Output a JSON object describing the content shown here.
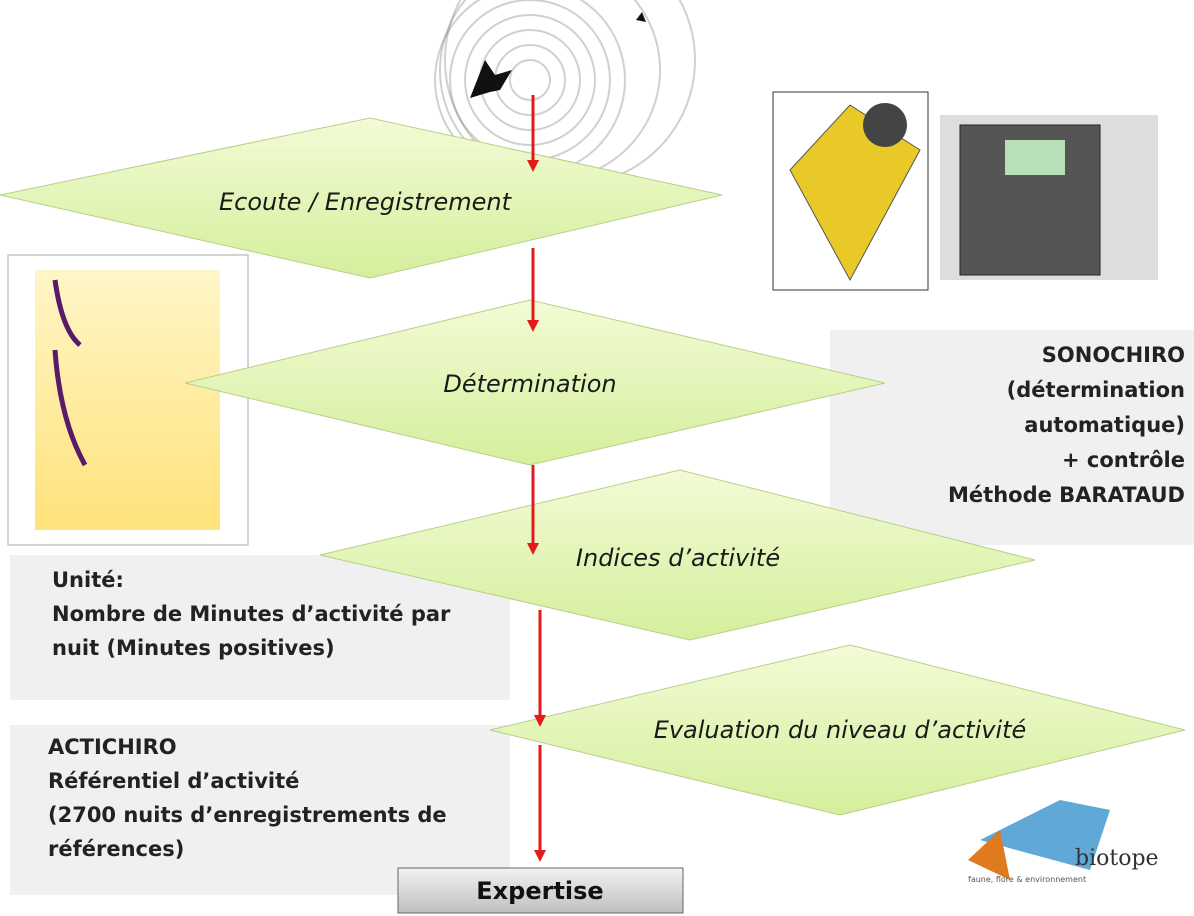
{
  "steps": [
    "Ecoute / Enregistrement",
    "Détermination",
    "Indices d’activité",
    "Evaluation du niveau d’activité"
  ],
  "final_step": "Expertise",
  "notes": {
    "sonochiro": [
      "SONOCHIRO",
      "(détermination",
      "automatique)",
      "+ contrôle",
      "Méthode BARATAUD"
    ],
    "unite": [
      "Unité:",
      "Nombre de Minutes d’activité par",
      "nuit (Minutes positives)"
    ],
    "actichiro": [
      "ACTICHIRO",
      "Référentiel d’activité",
      "(2700 nuits d’enregistrements de",
      "références)"
    ]
  },
  "logo": {
    "name": "biotope",
    "tagline": "faune, flore & environnement"
  }
}
